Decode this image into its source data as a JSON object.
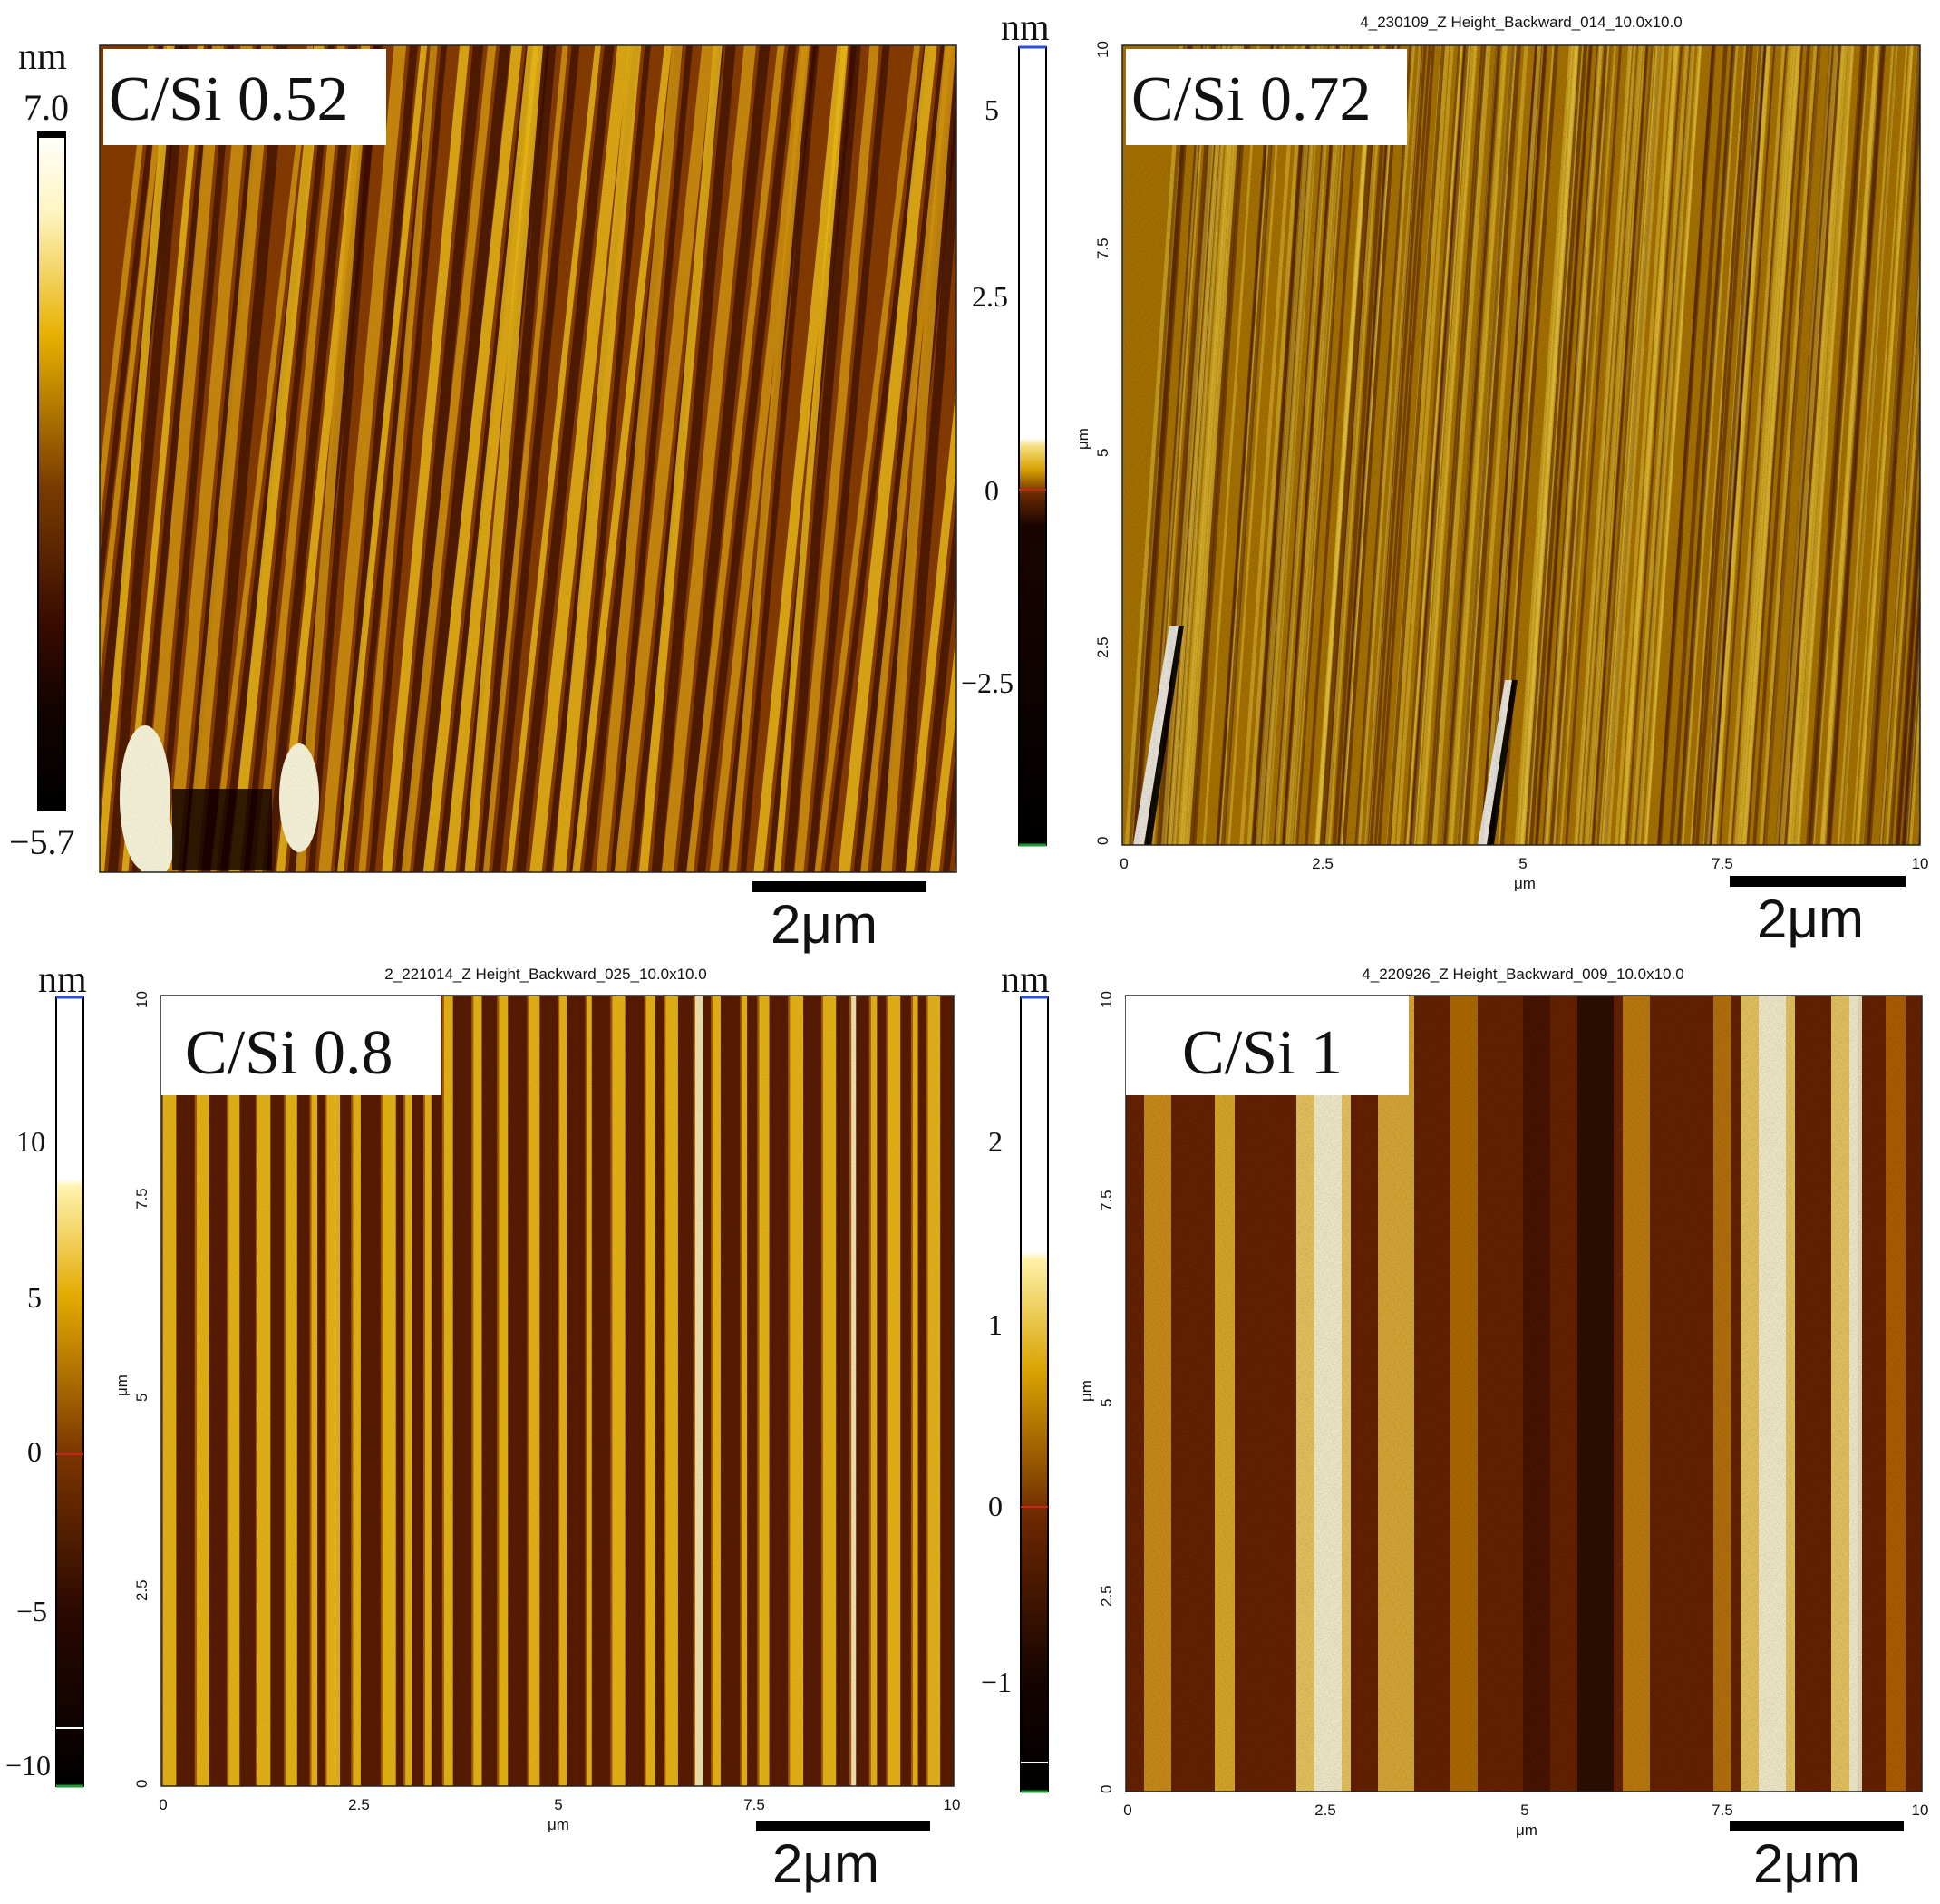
{
  "panels": [
    {
      "id": "p1",
      "label": "C/Si 0.52",
      "file_title": "",
      "colorbar": {
        "unit": "nm",
        "max_label": "7.0",
        "min_label": "−5.7",
        "ticks": []
      },
      "axis": {
        "ticks": [],
        "unit": ""
      },
      "scalebar": "2μm"
    },
    {
      "id": "p2",
      "label": "C/Si 0.72",
      "file_title": "4_230109_Z Height_Backward_014_10.0x10.0",
      "colorbar": {
        "unit": "nm",
        "max_label": "",
        "min_label": "",
        "ticks": [
          "5",
          "2.5",
          "0",
          "−2.5"
        ]
      },
      "axis": {
        "ticks": [
          "0",
          "2.5",
          "5",
          "7.5",
          "10"
        ],
        "unit": "μm"
      },
      "scalebar": "2μm"
    },
    {
      "id": "p3",
      "label": "C/Si 0.8",
      "file_title": "2_221014_Z Height_Backward_025_10.0x10.0",
      "colorbar": {
        "unit": "nm",
        "max_label": "",
        "min_label": "",
        "ticks": [
          "10",
          "5",
          "0",
          "−5",
          "−10"
        ]
      },
      "axis": {
        "ticks": [
          "0",
          "2.5",
          "5",
          "7.5",
          "10"
        ],
        "unit": "μm"
      },
      "scalebar": "2μm"
    },
    {
      "id": "p4",
      "label": "C/Si 1",
      "file_title": "4_220926_Z Height_Backward_009_10.0x10.0",
      "colorbar": {
        "unit": "nm",
        "max_label": "",
        "min_label": "",
        "ticks": [
          "2",
          "1",
          "0",
          "−1"
        ]
      },
      "axis": {
        "ticks": [
          "0",
          "2.5",
          "5",
          "7.5",
          "10"
        ],
        "unit": "μm"
      },
      "scalebar": "2μm"
    }
  ],
  "colors": {
    "dark": "#1a0600",
    "mid": "#8a3d00",
    "bright": "#f2c018",
    "highlight": "#fff6c8"
  }
}
